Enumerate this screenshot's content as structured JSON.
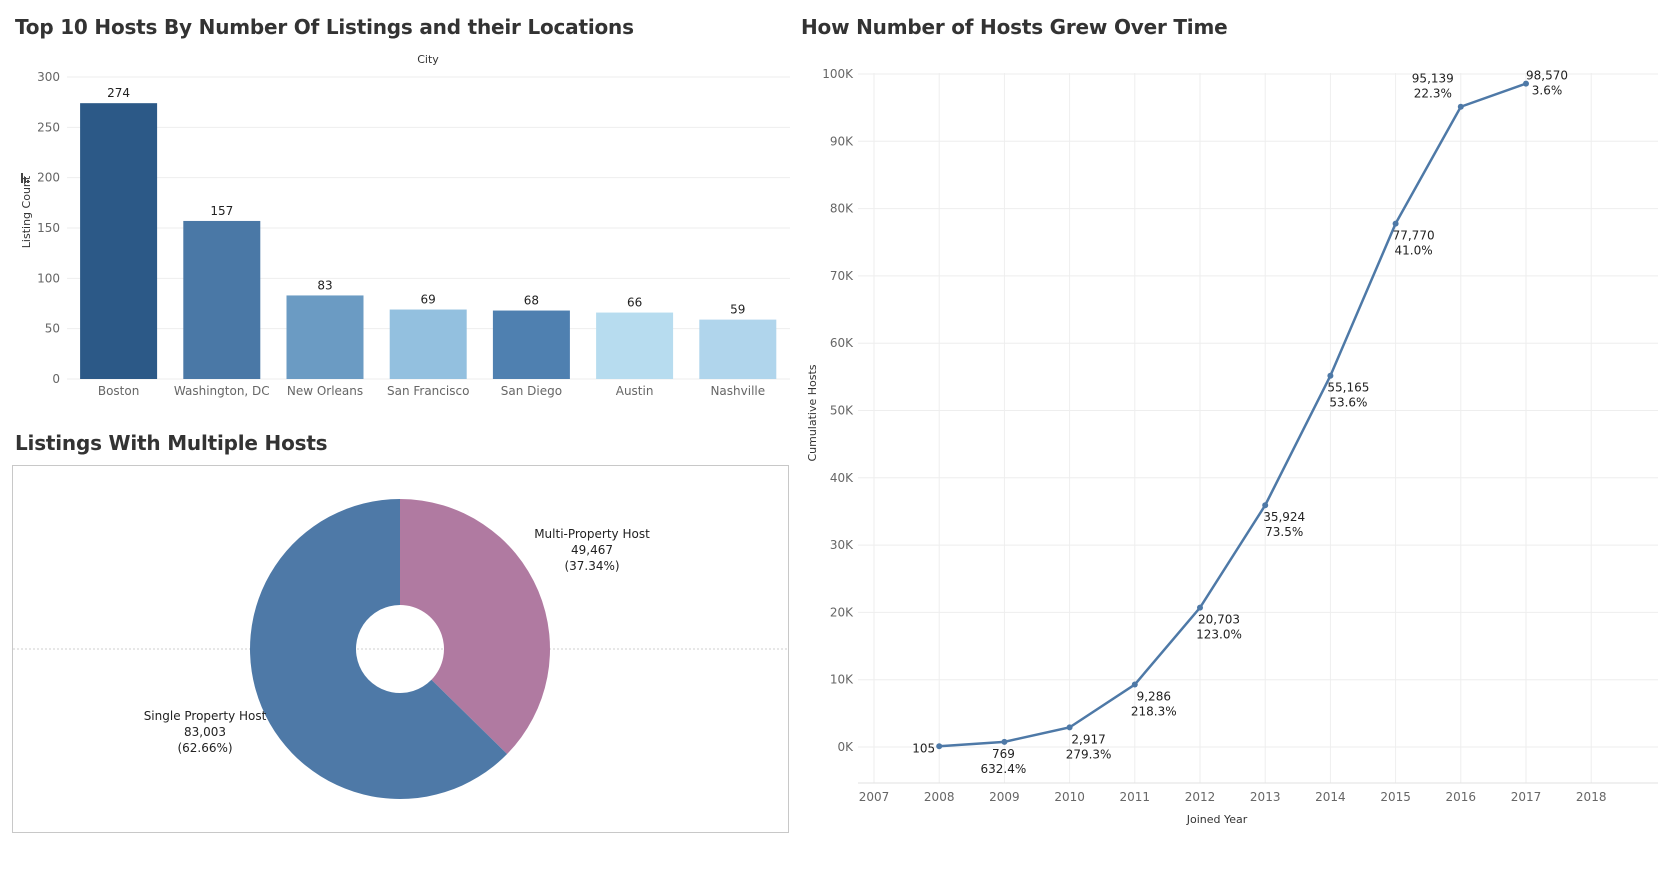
{
  "titles": {
    "bar": "Top 10 Hosts By Number Of Listings and their Locations",
    "donut": "Listings With Multiple Hosts",
    "line": "How Number of Hosts Grew Over Time"
  },
  "chart_data": [
    {
      "type": "bar",
      "title": "Top 10 Hosts By Number Of Listings and their Locations",
      "xlabel": "City",
      "ylabel": "Listing Count",
      "categories": [
        "Boston",
        "Washington, DC",
        "New Orleans",
        "San Francisco",
        "San Diego",
        "Austin",
        "Nashville"
      ],
      "values": [
        274,
        157,
        83,
        69,
        68,
        66,
        59
      ],
      "colors": [
        "#2c5987",
        "#4a78a6",
        "#6b9bc3",
        "#93c0df",
        "#4f80b0",
        "#b7dcef",
        "#b0d5ec"
      ],
      "yticks": [
        0,
        50,
        100,
        150,
        200,
        250,
        300
      ],
      "ylim": [
        0,
        300
      ],
      "grid": true
    },
    {
      "type": "pie",
      "title": "Listings With Multiple Hosts",
      "slices": [
        {
          "name": "Multi-Property Host",
          "value": 49467,
          "value_label": "49,467",
          "percent": "(37.34%)",
          "color": "#b07aa1"
        },
        {
          "name": "Single Property Host",
          "value": 83003,
          "value_label": "83,003",
          "percent": "(62.66%)",
          "color": "#4e79a7"
        }
      ]
    },
    {
      "type": "line",
      "title": "How Number of Hosts Grew Over Time",
      "xlabel": "Joined Year",
      "ylabel": "Cumulative Hosts",
      "color": "#4e79a7",
      "x": [
        2008,
        2009,
        2010,
        2011,
        2012,
        2013,
        2014,
        2015,
        2016,
        2017
      ],
      "y": [
        105,
        769,
        2917,
        9286,
        20703,
        35924,
        55165,
        77770,
        95139,
        98570
      ],
      "value_labels": [
        "105",
        "769",
        "2,917",
        "9,286",
        "20,703",
        "35,924",
        "55,165",
        "77,770",
        "95,139",
        "98,570"
      ],
      "growth_labels": [
        "",
        "632.4%",
        "279.3%",
        "218.3%",
        "123.0%",
        "73.5%",
        "53.6%",
        "41.0%",
        "22.3%",
        "3.6%"
      ],
      "xticks": [
        "2007",
        "2008",
        "2009",
        "2010",
        "2011",
        "2012",
        "2013",
        "2014",
        "2015",
        "2016",
        "2017",
        "2018"
      ],
      "yticks": [
        "0K",
        "10K",
        "20K",
        "30K",
        "40K",
        "50K",
        "60K",
        "70K",
        "80K",
        "90K",
        "100K"
      ],
      "ylim": [
        0,
        100000
      ],
      "xlim": [
        2007,
        2018
      ],
      "grid": true
    }
  ]
}
